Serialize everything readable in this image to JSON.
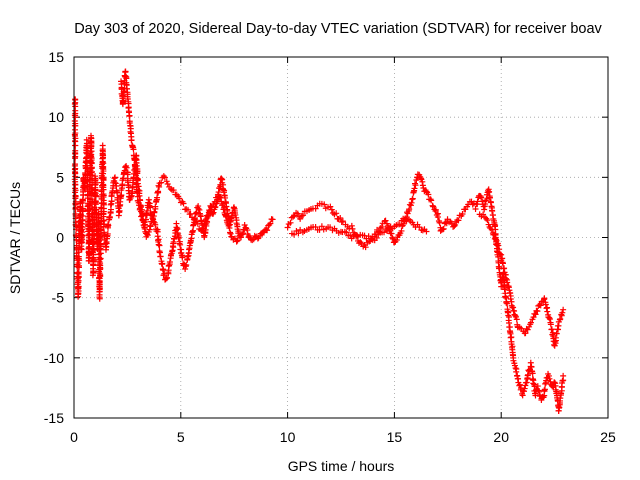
{
  "chart_data": {
    "type": "scatter",
    "title": "Day 303 of 2020, Sidereal Day-to-day VTEC variation (SDTVAR) for receiver boav",
    "xlabel": "GPS time / hours",
    "ylabel": "SDTVAR / TECUs",
    "xlim": [
      0,
      25
    ],
    "ylim": [
      -15,
      15
    ],
    "xticks": [
      0,
      5,
      10,
      15,
      20,
      25
    ],
    "yticks": [
      -15,
      -10,
      -5,
      0,
      5,
      10,
      15
    ],
    "grid": true,
    "marker": "+",
    "color": "#ff0000",
    "series": [
      {
        "name": "SDTVAR",
        "trace": [
          [
            0.05,
            11.5
          ],
          [
            0.05,
            5
          ],
          [
            0.1,
            0
          ],
          [
            0.15,
            -2
          ],
          [
            0.2,
            -5
          ],
          [
            0.25,
            1
          ],
          [
            0.3,
            3
          ],
          [
            0.35,
            -1
          ],
          [
            0.4,
            2
          ],
          [
            0.45,
            5
          ],
          [
            0.5,
            4
          ],
          [
            0.55,
            6
          ],
          [
            0.6,
            8
          ],
          [
            0.65,
            3
          ],
          [
            0.7,
            -2
          ],
          [
            0.75,
            5
          ],
          [
            0.8,
            8.5
          ],
          [
            0.85,
            3
          ],
          [
            0.9,
            -3
          ],
          [
            0.95,
            2
          ],
          [
            1.0,
            5
          ],
          [
            1.05,
            1
          ],
          [
            1.1,
            -1
          ],
          [
            1.15,
            2
          ],
          [
            1.2,
            -5
          ],
          [
            1.25,
            0
          ],
          [
            1.3,
            4
          ],
          [
            1.35,
            7.5
          ],
          [
            1.4,
            1
          ],
          [
            1.45,
            0
          ],
          [
            1.5,
            -1
          ],
          [
            1.6,
            1
          ],
          [
            1.7,
            2
          ],
          [
            1.8,
            4
          ],
          [
            1.9,
            5
          ],
          [
            2.0,
            4
          ],
          [
            2.1,
            2
          ],
          [
            2.2,
            3.5
          ],
          [
            2.3,
            5
          ],
          [
            2.4,
            6
          ],
          [
            2.5,
            5.5
          ],
          [
            2.6,
            3
          ],
          [
            2.7,
            3.5
          ],
          [
            2.8,
            5
          ],
          [
            2.9,
            7
          ],
          [
            3.0,
            4.5
          ],
          [
            3.1,
            3
          ],
          [
            3.2,
            2
          ],
          [
            3.3,
            1
          ],
          [
            3.4,
            2
          ],
          [
            3.5,
            3
          ],
          [
            3.6,
            2
          ],
          [
            3.7,
            1.5
          ],
          [
            3.8,
            1
          ],
          [
            3.9,
            0.5
          ],
          [
            4.0,
            -1
          ],
          [
            4.1,
            -2
          ],
          [
            4.2,
            -3
          ],
          [
            4.3,
            -3.5
          ],
          [
            4.4,
            -3
          ],
          [
            4.5,
            -2
          ],
          [
            4.6,
            -1
          ],
          [
            4.7,
            0
          ],
          [
            4.8,
            1
          ],
          [
            4.9,
            0
          ],
          [
            5.0,
            -1
          ],
          [
            5.1,
            -2
          ],
          [
            5.2,
            -2.5
          ],
          [
            5.3,
            -2
          ],
          [
            5.4,
            -1
          ],
          [
            5.5,
            0
          ],
          [
            5.6,
            1
          ],
          [
            5.7,
            2
          ],
          [
            5.8,
            2.5
          ],
          [
            5.9,
            2
          ],
          [
            6.0,
            1
          ],
          [
            6.1,
            0
          ],
          [
            6.2,
            1
          ],
          [
            6.3,
            2
          ],
          [
            6.4,
            2.5
          ],
          [
            6.5,
            2
          ],
          [
            6.6,
            2.5
          ],
          [
            6.7,
            3
          ],
          [
            6.8,
            4
          ],
          [
            6.9,
            5
          ],
          [
            7.0,
            4
          ],
          [
            7.1,
            3
          ],
          [
            7.2,
            2
          ],
          [
            7.3,
            1
          ],
          [
            7.4,
            2
          ],
          [
            7.5,
            2.5
          ],
          [
            7.6,
            1.5
          ],
          [
            7.7,
            0.5
          ],
          [
            7.8,
            0
          ],
          [
            7.9,
            0.5
          ],
          [
            8.0,
            1
          ],
          [
            8.1,
            0.5
          ],
          [
            8.2,
            0
          ],
          [
            8.3,
            -0.3
          ],
          [
            8.4,
            0
          ],
          [
            8.5,
            0.2
          ],
          [
            8.6,
            -0.2
          ],
          [
            8.7,
            0
          ],
          [
            8.8,
            0.3
          ],
          [
            8.9,
            0.5
          ],
          [
            9.0,
            0.6
          ],
          [
            9.3,
            1.5
          ],
          [
            10.0,
            1
          ],
          [
            10.2,
            1.5
          ],
          [
            10.4,
            2
          ],
          [
            10.6,
            1.5
          ],
          [
            10.8,
            2
          ],
          [
            11.0,
            2.2
          ],
          [
            11.2,
            2.4
          ],
          [
            11.4,
            2.6
          ],
          [
            11.6,
            2.7
          ],
          [
            11.8,
            2.6
          ],
          [
            12.0,
            2.4
          ],
          [
            12.2,
            2
          ],
          [
            12.4,
            1.6
          ],
          [
            12.6,
            1.2
          ],
          [
            12.8,
            1
          ],
          [
            13.0,
            0.8
          ],
          [
            13.2,
            0.2
          ],
          [
            13.4,
            -0.5
          ],
          [
            13.6,
            -0.8
          ],
          [
            13.8,
            -0.5
          ],
          [
            14.0,
            0
          ],
          [
            14.2,
            0.5
          ],
          [
            14.4,
            1
          ],
          [
            14.6,
            1.3
          ],
          [
            14.8,
            0.5
          ],
          [
            15.0,
            -0.5
          ],
          [
            15.2,
            0.2
          ],
          [
            15.4,
            1
          ],
          [
            15.6,
            2
          ],
          [
            15.8,
            3
          ],
          [
            16.0,
            4.5
          ],
          [
            16.1,
            5.3
          ],
          [
            16.2,
            5
          ],
          [
            16.3,
            4.5
          ],
          [
            16.4,
            4
          ],
          [
            16.5,
            3.8
          ],
          [
            17.0,
            2
          ],
          [
            17.2,
            0.5
          ],
          [
            17.5,
            1.5
          ],
          [
            17.8,
            0.8
          ],
          [
            18.0,
            1.5
          ],
          [
            18.2,
            2
          ],
          [
            18.4,
            2.5
          ],
          [
            18.6,
            3
          ],
          [
            18.8,
            2.5
          ],
          [
            19.0,
            3.5
          ],
          [
            19.2,
            2.5
          ],
          [
            19.4,
            4
          ],
          [
            19.5,
            3
          ],
          [
            19.6,
            2
          ],
          [
            19.7,
            1
          ],
          [
            19.8,
            -1
          ],
          [
            19.9,
            -2.5
          ],
          [
            20.0,
            -4
          ],
          [
            20.1,
            -3
          ],
          [
            20.2,
            -5
          ],
          [
            20.3,
            -6
          ],
          [
            20.4,
            -7.5
          ],
          [
            20.5,
            -9
          ],
          [
            20.6,
            -10.5
          ],
          [
            20.7,
            -11
          ],
          [
            20.8,
            -12
          ],
          [
            20.9,
            -12.5
          ],
          [
            21.0,
            -13
          ],
          [
            21.1,
            -12.5
          ],
          [
            21.2,
            -12
          ],
          [
            21.3,
            -11
          ],
          [
            21.4,
            -10.5
          ],
          [
            21.5,
            -12
          ],
          [
            21.6,
            -13
          ],
          [
            21.7,
            -12.5
          ],
          [
            21.8,
            -13
          ],
          [
            21.9,
            -13.5
          ],
          [
            22.0,
            -13
          ],
          [
            22.1,
            -12
          ],
          [
            22.2,
            -11.5
          ],
          [
            22.3,
            -12
          ],
          [
            22.4,
            -12.5
          ],
          [
            22.5,
            -12
          ],
          [
            22.6,
            -13
          ],
          [
            22.7,
            -14.5
          ],
          [
            22.8,
            -13
          ],
          [
            22.9,
            -11.5
          ]
        ],
        "trace2": [
          [
            2.2,
            13
          ],
          [
            2.3,
            11
          ],
          [
            2.4,
            13.8
          ],
          [
            2.5,
            12
          ],
          [
            2.6,
            10
          ],
          [
            2.7,
            8
          ],
          [
            2.8,
            7
          ],
          [
            2.9,
            5
          ],
          [
            3.0,
            3
          ],
          [
            3.2,
            1.5
          ],
          [
            3.4,
            0
          ],
          [
            3.6,
            1
          ],
          [
            3.8,
            2.5
          ],
          [
            4.0,
            4.5
          ],
          [
            4.2,
            5
          ],
          [
            4.4,
            4.5
          ],
          [
            4.6,
            4
          ],
          [
            4.8,
            3.5
          ],
          [
            5.0,
            3
          ],
          [
            5.2,
            2.5
          ],
          [
            5.4,
            2
          ],
          [
            5.6,
            1.5
          ],
          [
            5.8,
            1
          ],
          [
            6.0,
            0.5
          ],
          [
            6.2,
            1.5
          ],
          [
            6.4,
            2.5
          ],
          [
            6.6,
            3
          ],
          [
            6.8,
            3.5
          ],
          [
            7.0,
            2.5
          ],
          [
            7.2,
            1
          ],
          [
            7.4,
            0
          ],
          [
            7.6,
            -0.3
          ],
          [
            7.8,
            0.2
          ],
          [
            10.2,
            0.3
          ],
          [
            10.6,
            0.5
          ],
          [
            11.0,
            0.7
          ],
          [
            11.5,
            0.8
          ],
          [
            12.0,
            0.7
          ],
          [
            12.5,
            0.5
          ],
          [
            13.0,
            0
          ],
          [
            13.5,
            0.2
          ],
          [
            14.0,
            -0.2
          ],
          [
            14.5,
            0.5
          ],
          [
            15.0,
            1
          ],
          [
            15.5,
            1.5
          ],
          [
            16.0,
            1
          ],
          [
            16.5,
            0.5
          ],
          [
            19.0,
            2
          ],
          [
            19.3,
            1.5
          ],
          [
            19.6,
            0.5
          ],
          [
            19.9,
            -1
          ],
          [
            20.2,
            -3
          ],
          [
            20.5,
            -5.5
          ],
          [
            20.8,
            -7.5
          ],
          [
            21.1,
            -8
          ],
          [
            21.4,
            -7
          ],
          [
            21.7,
            -6
          ],
          [
            22.0,
            -5
          ],
          [
            22.3,
            -7
          ],
          [
            22.5,
            -9
          ],
          [
            22.7,
            -7
          ],
          [
            22.9,
            -6
          ]
        ]
      }
    ]
  }
}
